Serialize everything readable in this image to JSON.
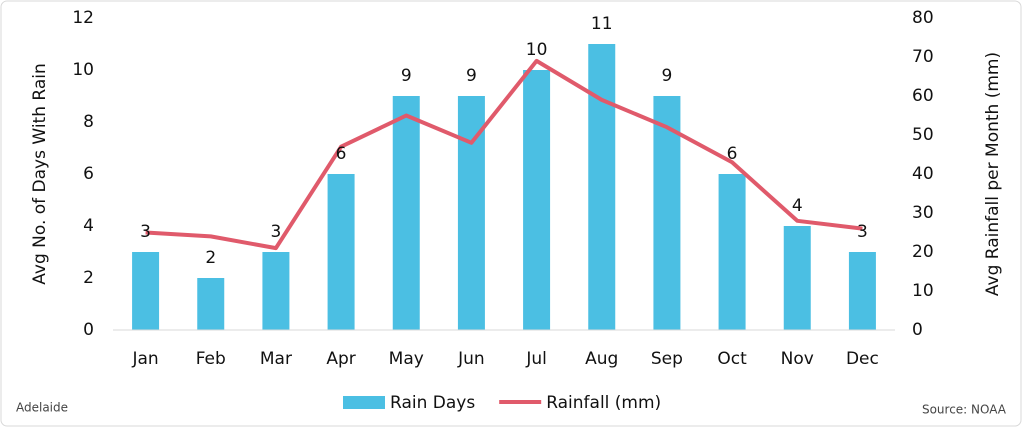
{
  "chart_data": {
    "type": "bar",
    "categories": [
      "Jan",
      "Feb",
      "Mar",
      "Apr",
      "May",
      "Jun",
      "Jul",
      "Aug",
      "Sep",
      "Oct",
      "Nov",
      "Dec"
    ],
    "series": [
      {
        "name": "Rain Days",
        "type": "bar",
        "color": "#4bbfe3",
        "values": [
          3,
          2,
          3,
          6,
          9,
          9,
          10,
          11,
          9,
          6,
          4,
          3
        ]
      },
      {
        "name": "Rainfall (mm)",
        "type": "line",
        "axis": "y2",
        "color": "#e05a6b",
        "values": [
          25,
          24,
          21,
          47,
          55,
          48,
          69,
          59,
          52,
          43,
          28,
          26
        ]
      }
    ],
    "ylabel": "Avg No. of Days With Rain",
    "y2label": "Avg Rainfall per Month (mm)",
    "ylim": [
      0,
      12
    ],
    "yticks": [
      0,
      2,
      4,
      6,
      8,
      10,
      12
    ],
    "y2lim": [
      0,
      80
    ],
    "y2ticks": [
      0,
      10,
      20,
      30,
      40,
      50,
      60,
      70,
      80
    ],
    "annotations": {
      "location": "Adelaide",
      "source": "Source: NOAA"
    },
    "legend": "bottom",
    "grid": false
  }
}
